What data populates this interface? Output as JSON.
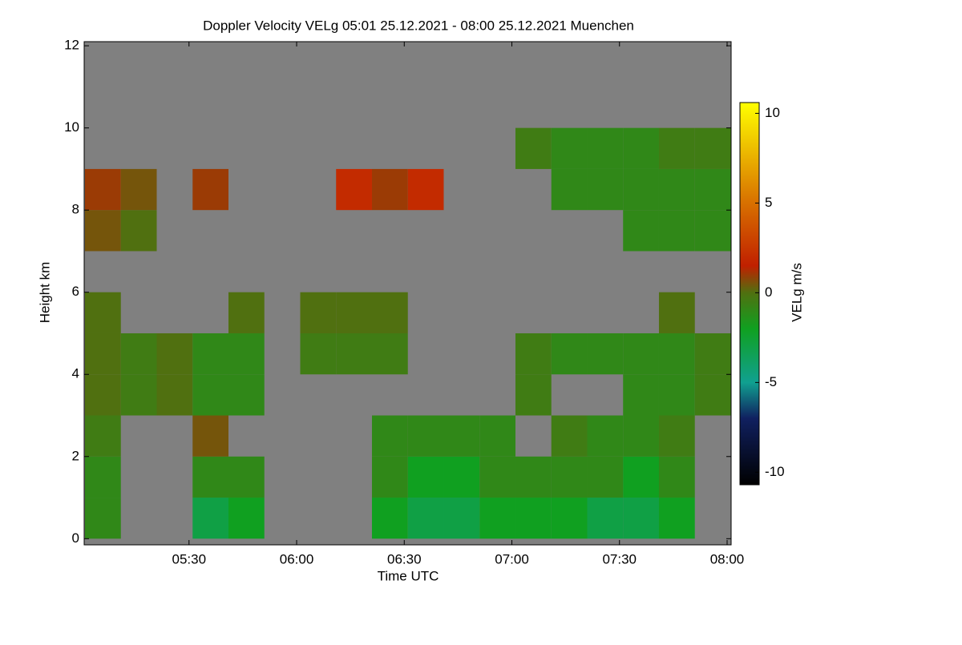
{
  "chart_data": {
    "type": "heatmap",
    "title": "Doppler Velocity VELg   05:01 25.12.2021 - 08:00 25.12.2021 Muenchen",
    "x_label": "Time UTC",
    "y_label": "Height km",
    "colorbar_label": "VELg m/s",
    "xlim": [
      "05:01",
      "08:00"
    ],
    "xticks": [
      "05:30",
      "06:00",
      "06:30",
      "07:00",
      "07:30",
      "08:00"
    ],
    "x": [
      "05:06",
      "05:16",
      "05:26",
      "05:36",
      "05:46",
      "05:56",
      "06:06",
      "06:16",
      "06:26",
      "06:36",
      "06:46",
      "06:56",
      "07:06",
      "07:16",
      "07:26",
      "07:36",
      "07:46",
      "07:56"
    ],
    "y_bins": [
      0,
      1,
      2,
      3,
      4,
      5,
      6,
      7,
      8,
      9,
      10,
      11,
      12
    ],
    "ylim": [
      -0.15,
      12.1
    ],
    "yticks": [
      0,
      2,
      4,
      6,
      8,
      10,
      12
    ],
    "zlim": [
      -10.7,
      10.6
    ],
    "zticks": [
      -10,
      -5,
      0,
      5,
      10
    ],
    "nan_color": "#808080",
    "colorscale": [
      [
        -10.7,
        "#000000"
      ],
      [
        -7,
        "#102060"
      ],
      [
        -5,
        "#10a090"
      ],
      [
        -2,
        "#10a020"
      ],
      [
        0,
        "#507010"
      ],
      [
        1.5,
        "#c02000"
      ],
      [
        5,
        "#d87000"
      ],
      [
        10.6,
        "#ffff00"
      ]
    ],
    "z": [
      [
        -1,
        null,
        null,
        -3,
        -2,
        null,
        null,
        null,
        -2,
        -3,
        -3,
        -2,
        -2,
        -2,
        -3,
        -3,
        -2,
        null
      ],
      [
        -1,
        null,
        null,
        -1,
        -1,
        null,
        null,
        null,
        -1,
        -2,
        -2,
        -1,
        -1,
        -1,
        -1,
        -2,
        -1,
        null
      ],
      [
        -0.5,
        null,
        null,
        0.5,
        null,
        null,
        null,
        null,
        -1,
        -1,
        -1,
        -1,
        null,
        -0.5,
        -1,
        -1,
        -0.5,
        null
      ],
      [
        0,
        -0.5,
        0,
        -1,
        -1,
        null,
        null,
        null,
        null,
        null,
        null,
        null,
        -0.5,
        null,
        null,
        -1,
        -1,
        -0.5
      ],
      [
        0,
        -0.5,
        0,
        -1,
        -1,
        null,
        -0.5,
        -0.5,
        -0.5,
        null,
        null,
        null,
        -0.5,
        -1,
        -1,
        -1,
        -1,
        -0.5
      ],
      [
        0,
        null,
        null,
        null,
        0,
        null,
        0,
        0,
        0,
        null,
        null,
        null,
        null,
        null,
        null,
        null,
        0,
        null
      ],
      [
        null,
        null,
        null,
        null,
        null,
        null,
        null,
        null,
        null,
        null,
        null,
        null,
        null,
        null,
        null,
        null,
        null,
        null
      ],
      [
        0.5,
        0,
        null,
        null,
        null,
        null,
        null,
        null,
        null,
        null,
        null,
        null,
        null,
        null,
        null,
        -1,
        -1,
        -1
      ],
      [
        1,
        0.5,
        null,
        1,
        null,
        null,
        null,
        2,
        1,
        2,
        null,
        null,
        null,
        -1,
        -1,
        -1,
        -1,
        -1
      ],
      [
        null,
        null,
        null,
        null,
        null,
        null,
        null,
        null,
        null,
        null,
        null,
        null,
        -0.5,
        -1,
        -1,
        -1,
        -0.5,
        -0.5
      ],
      [
        null,
        null,
        null,
        null,
        null,
        null,
        null,
        null,
        null,
        null,
        null,
        null,
        null,
        null,
        null,
        null,
        null,
        null
      ],
      [
        null,
        null,
        null,
        null,
        null,
        null,
        null,
        null,
        null,
        null,
        null,
        null,
        null,
        null,
        null,
        null,
        null,
        null
      ]
    ]
  }
}
